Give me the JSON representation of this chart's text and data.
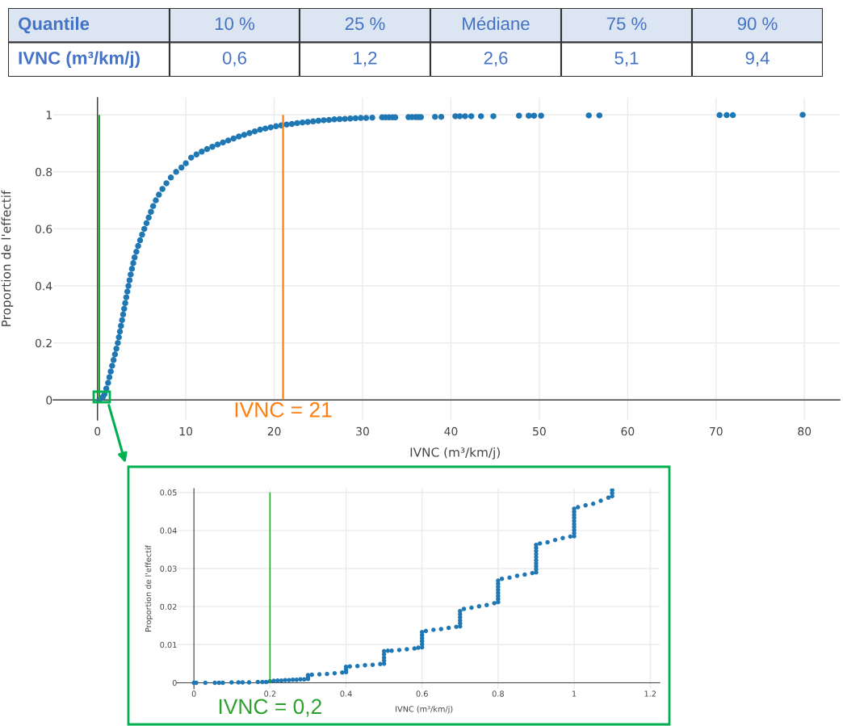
{
  "chart_data": [
    {
      "type": "other",
      "xlabel": "Quantile",
      "ylabel": "IVNC (m³/km/j)",
      "categories": [
        "10 %",
        "25 %",
        "Médiane",
        "75 %",
        "90 %"
      ],
      "value_labels": [
        "0,6",
        "1,2",
        "2,6",
        "5,1",
        "9,4"
      ]
    },
    {
      "type": "scatter",
      "xlabel": "IVNC (m³/km/j)",
      "ylabel": "Proportion de l'effectif",
      "marker": "circle",
      "grid": true,
      "xlim": [
        -5,
        84
      ],
      "xticks": [
        0,
        10,
        20,
        30,
        40,
        50,
        60,
        70,
        80
      ],
      "ylim": [
        -0.07,
        1.06
      ],
      "yticks": [
        0,
        0.2,
        0.4,
        0.6,
        0.8,
        1
      ],
      "series": [
        {
          "color": "#1f77b4",
          "x": [
            0.2,
            0.6,
            0.8,
            1.0,
            1.2,
            1.35,
            1.5,
            1.66,
            1.82,
            1.98,
            2.14,
            2.3,
            2.42,
            2.54,
            2.66,
            2.78,
            2.9,
            3.02,
            3.14,
            3.26,
            3.38,
            3.5,
            3.63,
            3.76,
            3.9,
            4.05,
            4.2,
            4.4,
            4.6,
            4.82,
            5.05,
            5.3,
            5.55,
            5.8,
            6.05,
            6.3,
            6.6,
            6.95,
            7.35,
            7.8,
            8.3,
            8.9,
            9.5,
            10.0,
            10.6,
            11.2,
            11.8,
            12.4,
            13.0,
            13.6,
            14.2,
            14.8,
            15.4,
            16.0,
            16.6,
            17.2,
            17.8,
            18.4,
            19.0,
            19.6,
            20.2,
            20.8,
            21.4,
            22.0,
            22.6,
            23.2,
            23.8,
            24.4,
            25.0,
            25.6,
            26.2,
            26.8,
            27.4,
            28.0,
            28.6,
            29.2,
            29.8,
            30.4,
            31.1,
            32.2,
            32.6,
            33.0,
            33.4,
            33.7,
            35.2,
            35.6,
            36.0,
            36.3,
            36.6,
            38.2,
            38.9,
            40.5,
            41.0,
            41.6,
            42.3,
            43.4,
            44.8,
            47.7,
            48.8,
            49.4,
            50.2,
            55.6,
            56.8,
            70.4,
            71.2,
            71.9,
            79.8
          ],
          "values": [
            0,
            0.01,
            0.02,
            0.04,
            0.06,
            0.08,
            0.1,
            0.12,
            0.14,
            0.16,
            0.18,
            0.2,
            0.22,
            0.24,
            0.26,
            0.28,
            0.3,
            0.32,
            0.34,
            0.36,
            0.38,
            0.4,
            0.42,
            0.44,
            0.46,
            0.48,
            0.5,
            0.52,
            0.54,
            0.56,
            0.58,
            0.6,
            0.62,
            0.64,
            0.66,
            0.68,
            0.7,
            0.72,
            0.74,
            0.76,
            0.78,
            0.8,
            0.815,
            0.83,
            0.85,
            0.861,
            0.871,
            0.88,
            0.888,
            0.896,
            0.903,
            0.91,
            0.917,
            0.924,
            0.93,
            0.936,
            0.942,
            0.948,
            0.952,
            0.956,
            0.96,
            0.963,
            0.966,
            0.968,
            0.971,
            0.973,
            0.975,
            0.977,
            0.979,
            0.981,
            0.982,
            0.984,
            0.985,
            0.986,
            0.987,
            0.988,
            0.989,
            0.989,
            0.99,
            0.991,
            0.991,
            0.991,
            0.991,
            0.991,
            0.992,
            0.992,
            0.992,
            0.992,
            0.992,
            0.993,
            0.993,
            0.995,
            0.995,
            0.995,
            0.995,
            0.995,
            0.995,
            0.997,
            0.997,
            0.997,
            0.997,
            0.998,
            0.998,
            0.999,
            0.999,
            0.999,
            1
          ]
        }
      ],
      "ref_lines": [
        {
          "axis": "x",
          "value": 0.2,
          "color": "#2ca02c"
        },
        {
          "axis": "x",
          "value": 21,
          "label": "IVNC = 21",
          "color": "#ff7f0e"
        }
      ]
    },
    {
      "type": "scatter",
      "xlabel": "IVNC (m³/km/j)",
      "ylabel": "Proportion de l'effectif",
      "marker": "circle",
      "grid": true,
      "xlim": [
        -0.045,
        1.225
      ],
      "xticks": [
        0,
        0.2,
        0.4,
        0.6,
        0.8,
        1,
        1.2
      ],
      "ylim": [
        -0.0016,
        0.051
      ],
      "yticks": [
        0,
        0.01,
        0.02,
        0.03,
        0.04,
        0.05
      ],
      "series": [
        {
          "color": "#1f77b4",
          "x": [
            0,
            0.006,
            0.03,
            0.055,
            0.066,
            0.076,
            0.099,
            0.117,
            0.128,
            0.145,
            0.168,
            0.18,
            0.19,
            0.2,
            0.21,
            0.22,
            0.23,
            0.24,
            0.25,
            0.26,
            0.27,
            0.28,
            0.29,
            0.3,
            0.3,
            0.3,
            0.31,
            0.33,
            0.35,
            0.37,
            0.39,
            0.4,
            0.4,
            0.4,
            0.41,
            0.43,
            0.45,
            0.47,
            0.49,
            0.5,
            0.5,
            0.5,
            0.5,
            0.5,
            0.51,
            0.52,
            0.54,
            0.56,
            0.58,
            0.59,
            0.6,
            0.6,
            0.6,
            0.6,
            0.6,
            0.6,
            0.61,
            0.63,
            0.65,
            0.67,
            0.69,
            0.7,
            0.7,
            0.7,
            0.7,
            0.7,
            0.7,
            0.71,
            0.73,
            0.75,
            0.77,
            0.79,
            0.8,
            0.8,
            0.8,
            0.8,
            0.8,
            0.8,
            0.8,
            0.8,
            0.81,
            0.83,
            0.85,
            0.87,
            0.89,
            0.9,
            0.9,
            0.9,
            0.9,
            0.9,
            0.9,
            0.9,
            0.9,
            0.9,
            0.9,
            0.91,
            0.93,
            0.95,
            0.97,
            0.99,
            1,
            1,
            1,
            1,
            1,
            1,
            1,
            1,
            1,
            1,
            1.01,
            1.03,
            1.05,
            1.07,
            1.09,
            1.1,
            1.1,
            1.1
          ],
          "values": [
            0,
            0,
            0,
            0,
            0,
            0,
            0.0001,
            0.0001,
            0.0001,
            0.0001,
            0.0002,
            0.0002,
            0.0002,
            0.0004,
            0.0005,
            0.0006,
            0.0006,
            0.0007,
            0.0007,
            0.0008,
            0.0008,
            0.0009,
            0.0009,
            0.001,
            0.0015,
            0.002,
            0.0021,
            0.0022,
            0.0023,
            0.0025,
            0.0027,
            0.0028,
            0.0035,
            0.0042,
            0.0043,
            0.0044,
            0.0046,
            0.0047,
            0.0049,
            0.005,
            0.0058,
            0.0066,
            0.0075,
            0.0083,
            0.0084,
            0.0084,
            0.0086,
            0.0088,
            0.009,
            0.0092,
            0.0093,
            0.0101,
            0.0109,
            0.0117,
            0.0125,
            0.0133,
            0.0136,
            0.0139,
            0.0141,
            0.0144,
            0.0147,
            0.0148,
            0.0156,
            0.0164,
            0.0172,
            0.018,
            0.0188,
            0.0194,
            0.0197,
            0.0201,
            0.0204,
            0.0209,
            0.0212,
            0.022,
            0.0228,
            0.0236,
            0.0244,
            0.0252,
            0.026,
            0.0268,
            0.0273,
            0.0276,
            0.0281,
            0.0284,
            0.0288,
            0.029,
            0.0298,
            0.0306,
            0.0314,
            0.0322,
            0.033,
            0.0338,
            0.0346,
            0.0354,
            0.0362,
            0.0366,
            0.0369,
            0.0375,
            0.038,
            0.0384,
            0.0385,
            0.0393,
            0.0401,
            0.0409,
            0.0417,
            0.0425,
            0.0433,
            0.0441,
            0.0449,
            0.0457,
            0.0461,
            0.0466,
            0.047,
            0.0478,
            0.0486,
            0.049,
            0.0498,
            0.0506
          ]
        }
      ],
      "ref_lines": [
        {
          "axis": "x",
          "value": 0.2,
          "label": "IVNC = 0,2",
          "color": "#2ca02c"
        }
      ]
    }
  ]
}
